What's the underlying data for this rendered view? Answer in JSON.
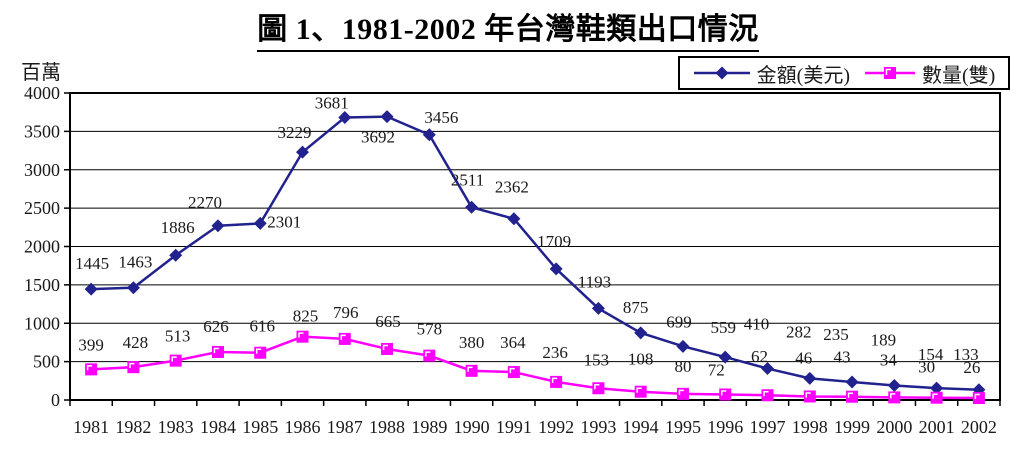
{
  "title": "圖 1、1981-2002 年台灣鞋類出口情況",
  "chart_data": {
    "type": "line",
    "title": "圖 1、1981-2002 年台灣鞋類出口情況",
    "ylabel": "百萬",
    "xlabel": "",
    "categories": [
      "1981",
      "1982",
      "1983",
      "1984",
      "1985",
      "1986",
      "1987",
      "1988",
      "1989",
      "1990",
      "1991",
      "1992",
      "1993",
      "1994",
      "1995",
      "1996",
      "1997",
      "1998",
      "1999",
      "2000",
      "2001",
      "2002"
    ],
    "series": [
      {
        "name": "金額(美元)",
        "marker": "diamond",
        "color": "#22228F",
        "values": [
          1445,
          1463,
          1886,
          2270,
          2301,
          3229,
          3681,
          3692,
          3456,
          2511,
          2362,
          1709,
          1193,
          875,
          699,
          559,
          410,
          282,
          235,
          189,
          154,
          133
        ]
      },
      {
        "name": "數量(雙)",
        "marker": "square",
        "color": "#FF00FF",
        "values": [
          399,
          428,
          513,
          626,
          616,
          825,
          796,
          665,
          578,
          380,
          364,
          236,
          153,
          108,
          80,
          72,
          62,
          46,
          43,
          34,
          30,
          26
        ]
      }
    ],
    "ylim": [
      0,
      4000
    ],
    "ytick_step": 500,
    "grid": true,
    "legend_position": "top-right",
    "data_labels": true
  }
}
